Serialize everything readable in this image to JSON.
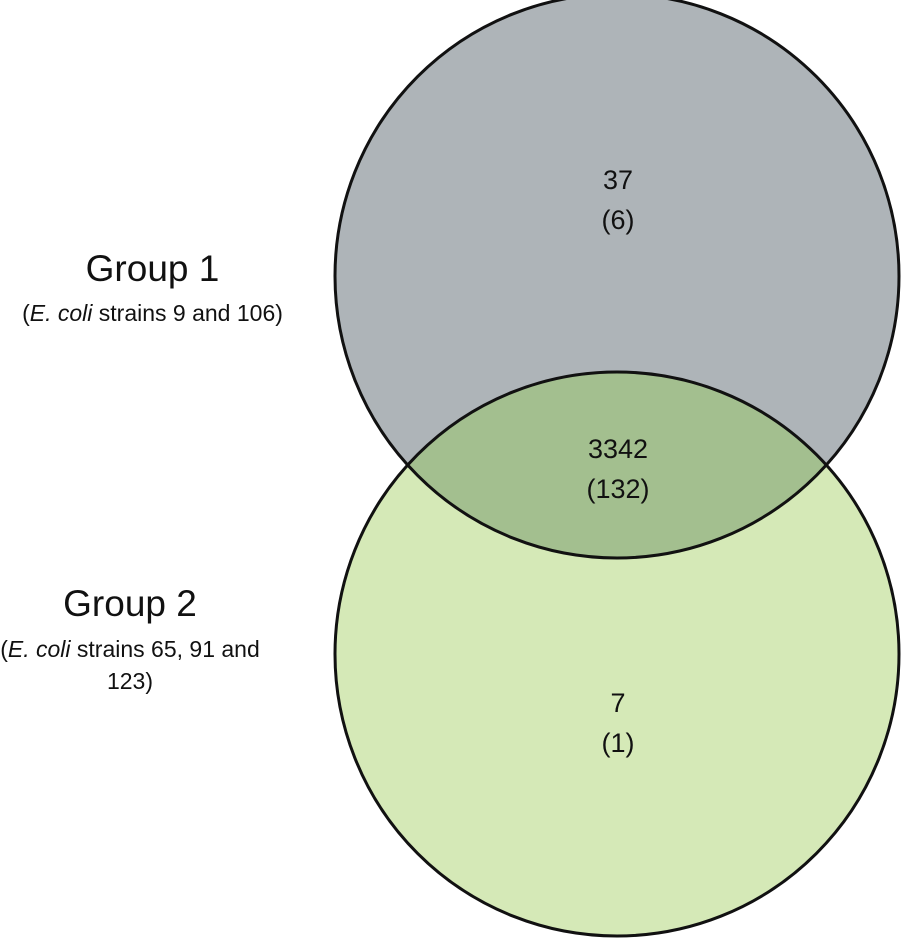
{
  "colors": {
    "group1_fill": "#aeb4b8",
    "group2_fill": "#d5e9b7",
    "overlap_fill": "#a3bf8f",
    "outline": "#111111"
  },
  "group1": {
    "title": "Group 1",
    "desc_open": "(",
    "desc_italic": "E. coli",
    "desc_rest": " strains 9 and 106)"
  },
  "group2": {
    "title": "Group 2",
    "desc_open": "(",
    "desc_italic": "E. coli",
    "desc_rest": " strains 65, 91 and 123)"
  },
  "regions": {
    "group1_only": {
      "value": "37",
      "sub": "(6)"
    },
    "shared": {
      "value": "3342",
      "sub": "(132)"
    },
    "group2_only": {
      "value": "7",
      "sub": "(1)"
    }
  }
}
